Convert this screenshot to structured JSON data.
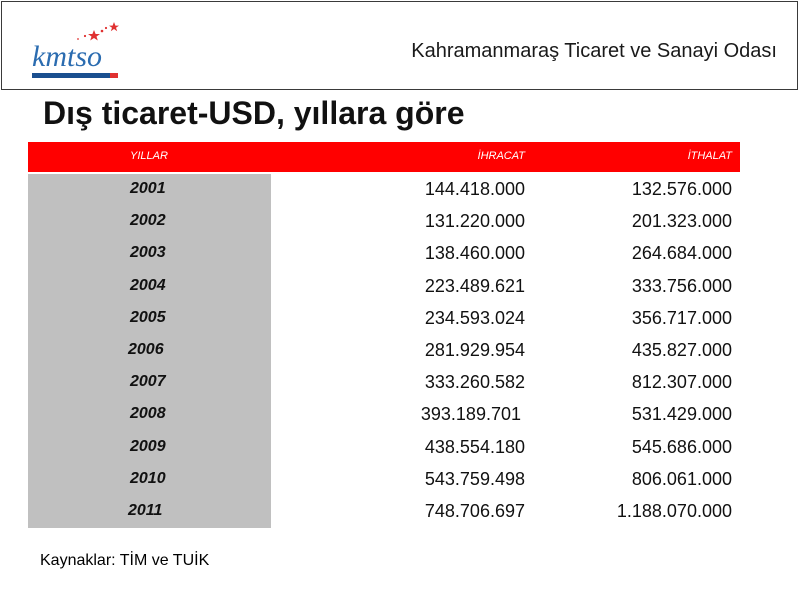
{
  "header": {
    "org_name": "Kahramanmaraş Ticaret ve Sanayi Odası",
    "logo_text": "kmtso",
    "logo_colors": {
      "letters": "#2b6cb0",
      "stars": "#e03131",
      "band": "#1a4f8f"
    }
  },
  "title": "Dış ticaret-USD, yıllara göre",
  "table": {
    "columns": [
      "YILLAR",
      "İHRACAT",
      "İTHALAT"
    ],
    "rows": [
      {
        "year": "2001",
        "export": "144.418.000",
        "import": "132.576.000"
      },
      {
        "year": "2002",
        "export": "131.220.000",
        "import": "201.323.000"
      },
      {
        "year": "2003",
        "export": "138.460.000",
        "import": "264.684.000"
      },
      {
        "year": "2004",
        "export": "223.489.621",
        "import": "333.756.000"
      },
      {
        "year": "2005",
        "export": "234.593.024",
        "import": "356.717.000"
      },
      {
        "year": "2006",
        "export": "281.929.954",
        "import": "435.827.000"
      },
      {
        "year": "2007",
        "export": "333.260.582",
        "import": "812.307.000"
      },
      {
        "year": "2008",
        "export": "393.189.701",
        "import": "531.429.000"
      },
      {
        "year": "2009",
        "export": "438.554.180",
        "import": "545.686.000"
      },
      {
        "year": "2010",
        "export": "543.759.498",
        "import": "806.061.000"
      },
      {
        "year": "2011",
        "export": "748.706.697",
        "import": "1.188.070.000"
      }
    ],
    "colors": {
      "header_bg": "#ff0000",
      "year_col_bg": "#c0c0c0"
    }
  },
  "source": "Kaynaklar: TİM ve TUİK"
}
